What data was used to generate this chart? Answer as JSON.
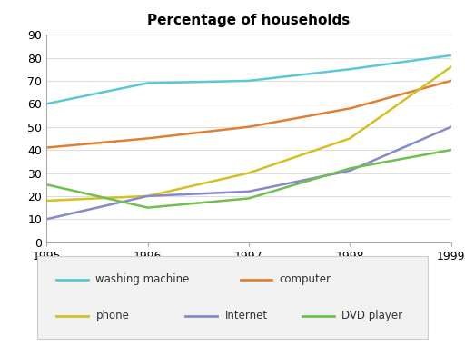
{
  "title": "Percentage of households",
  "years": [
    1995,
    1996,
    1997,
    1998,
    1999
  ],
  "series": {
    "washing machine": {
      "values": [
        60,
        69,
        70,
        75,
        81
      ],
      "color": "#5bc8d5"
    },
    "computer": {
      "values": [
        41,
        45,
        50,
        58,
        70
      ],
      "color": "#e08030"
    },
    "phone": {
      "values": [
        18,
        20,
        30,
        45,
        76
      ],
      "color": "#d4c020"
    },
    "Internet": {
      "values": [
        10,
        20,
        22,
        31,
        50
      ],
      "color": "#8888cc"
    },
    "DVD player": {
      "values": [
        25,
        15,
        19,
        32,
        40
      ],
      "color": "#70c050"
    }
  },
  "ylim": [
    0,
    90
  ],
  "yticks": [
    0,
    10,
    20,
    30,
    40,
    50,
    60,
    70,
    80,
    90
  ],
  "background_color": "#ffffff",
  "legend_row1": [
    "washing machine",
    "computer"
  ],
  "legend_row2": [
    "phone",
    "Internet",
    "DVD player"
  ]
}
